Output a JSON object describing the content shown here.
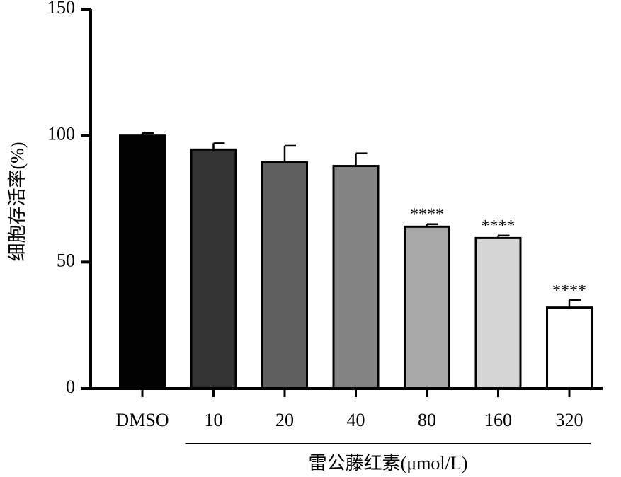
{
  "chart_data": {
    "type": "bar",
    "title": "",
    "ylabel": "细胞存活率(%)",
    "xlabel": "雷公藤红素(μmol/L)",
    "ylim": [
      0,
      150
    ],
    "yticks": [
      0,
      50,
      100,
      150
    ],
    "categories": [
      "DMSO",
      "10",
      "20",
      "40",
      "80",
      "160",
      "320"
    ],
    "values": [
      100,
      94.5,
      89.5,
      88,
      64,
      59.5,
      32
    ],
    "errors": [
      1,
      2.5,
      6.5,
      5,
      1,
      1,
      3
    ],
    "significance": [
      "",
      "",
      "",
      "",
      "****",
      "****",
      "****"
    ],
    "bar_colors": [
      "#000000",
      "#333333",
      "#5f5f5f",
      "#838383",
      "#a8a8a8",
      "#d6d6d6",
      "#ffffff"
    ],
    "bracket_categories": [
      "10",
      "20",
      "40",
      "80",
      "160",
      "320"
    ]
  }
}
